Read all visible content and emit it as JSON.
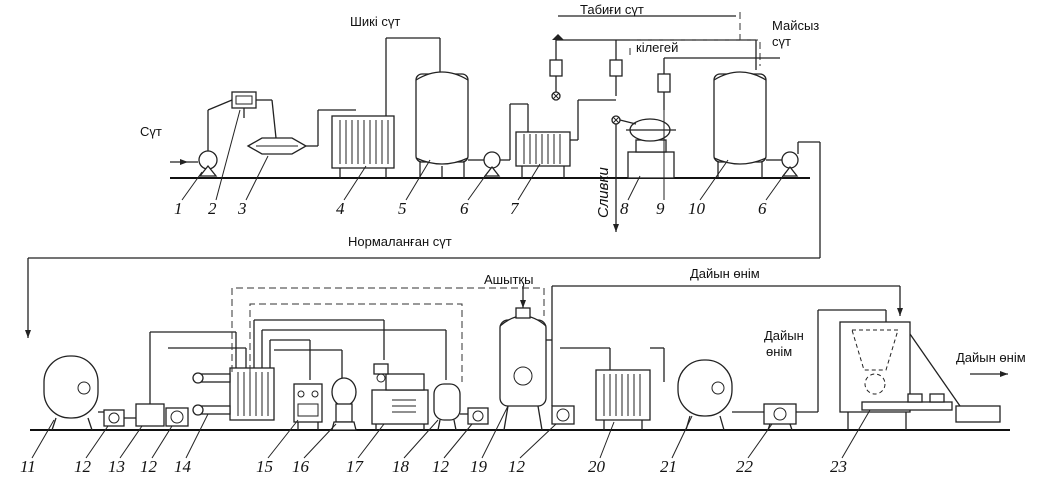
{
  "labels": {
    "milk_in": "Сүт",
    "raw_milk": "Шикі сүт",
    "natural_milk": "Табиғи сүт",
    "skim_milk_1": "Майсыз",
    "skim_milk_2": "сүт",
    "cream": "кілегей",
    "cream_out": "Сливки",
    "normalized_milk": "Нормаланған сүт",
    "starter": "Ашытқы",
    "finished_top": "Дайын өнім",
    "finished_mid_1": "Дайын",
    "finished_mid_2": "өнім",
    "finished_right": "Дайын өнім"
  },
  "numbers": {
    "n1": "1",
    "n2": "2",
    "n3": "3",
    "n4": "4",
    "n5": "5",
    "n6a": "6",
    "n7": "7",
    "n8": "8",
    "n9": "9",
    "n10": "10",
    "n6b": "6",
    "n11": "11",
    "n12a": "12",
    "n13": "13",
    "n12b": "12",
    "n14": "14",
    "n15": "15",
    "n16": "16",
    "n17": "17",
    "n18": "18",
    "n12c": "12",
    "n19": "19",
    "n12d": "12",
    "n20": "20",
    "n21": "21",
    "n22": "22",
    "n23": "23"
  }
}
